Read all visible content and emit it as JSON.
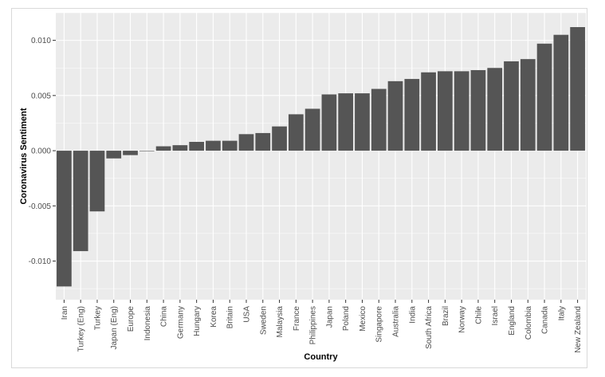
{
  "chart_data": {
    "type": "bar",
    "xlabel": "Country",
    "ylabel": "Coronavirus Sentiment",
    "ylim": [
      -0.0135,
      0.0125
    ],
    "yticks": [
      "-0.010",
      "-0.005",
      "0.000",
      "0.005",
      "0.010"
    ],
    "yticks_values": [
      -0.01,
      -0.005,
      0,
      0.005,
      0.01
    ],
    "grid": true,
    "bar_color": "#555555",
    "panel_color": "#ebebeb",
    "grid_color": "#ffffff",
    "categories": [
      "Iran",
      "Turkey (Eng)",
      "Turkey",
      "Japan (Eng)",
      "Europe",
      "Indonesia",
      "China",
      "Germany",
      "Hungary",
      "Korea",
      "Britain",
      "USA",
      "Sweden",
      "Malaysia",
      "France",
      "Philippines",
      "Japan",
      "Poland",
      "Mexico",
      "Singapore",
      "Australia",
      "India",
      "South Africa",
      "Brazil",
      "Norway",
      "Chile",
      "Israel",
      "England",
      "Colombia",
      "Canada",
      "Italy",
      "New Zealand"
    ],
    "values": [
      -0.0123,
      -0.0091,
      -0.0055,
      -0.0007,
      -0.0004,
      0.0,
      0.0004,
      0.0005,
      0.0008,
      0.0009,
      0.0009,
      0.0015,
      0.0016,
      0.0022,
      0.0033,
      0.0038,
      0.0051,
      0.0052,
      0.0052,
      0.0056,
      0.0063,
      0.0065,
      0.0071,
      0.0072,
      0.0072,
      0.0073,
      0.0075,
      0.0081,
      0.0083,
      0.0097,
      0.0105,
      0.0112
    ]
  }
}
